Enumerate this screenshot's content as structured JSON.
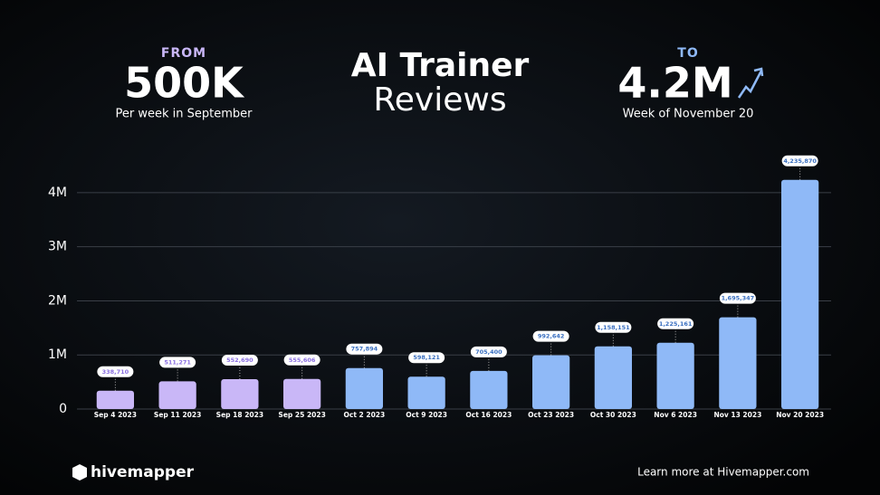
{
  "header": {
    "from_label": "FROM",
    "from_value": "500K",
    "from_note": "Per week in September",
    "title_line1": "AI Trainer",
    "title_line2": "Reviews",
    "to_label": "TO",
    "to_value": "4.2M",
    "to_note": "Week of November 20"
  },
  "footer": {
    "brand": "hivemapper",
    "link": "Learn more at Hivemapper.com"
  },
  "chart_data": {
    "type": "bar",
    "categories": [
      "Sep 4 2023",
      "Sep 11 2023",
      "Sep 18 2023",
      "Sep 25 2023",
      "Oct 2 2023",
      "Oct 9 2023",
      "Oct 16 2023",
      "Oct 23 2023",
      "Oct 30 2023",
      "Nov 6 2023",
      "Nov 13 2023",
      "Nov 20 2023"
    ],
    "values": [
      338710,
      511271,
      552690,
      555606,
      757894,
      598121,
      705400,
      992642,
      1158151,
      1225161,
      1695347,
      4235870
    ],
    "value_labels": [
      "338,710",
      "511,271",
      "552,690",
      "555,606",
      "757,894",
      "598,121",
      "705,400",
      "992,642",
      "1,158,151",
      "1,225,161",
      "1,695,347",
      "4,235,870"
    ],
    "colors": [
      "#c9b7f7",
      "#c9b7f7",
      "#c9b7f7",
      "#c9b7f7",
      "#8fb9f7",
      "#8fb9f7",
      "#8fb9f7",
      "#8fb9f7",
      "#8fb9f7",
      "#8fb9f7",
      "#8fb9f7",
      "#8fb9f7"
    ],
    "ylim": [
      0,
      4500000
    ],
    "yticks": [
      0,
      {
        "value": 1000000,
        "label": "1M"
      },
      {
        "value": 2000000,
        "label": "2M"
      },
      {
        "value": 3000000,
        "label": "3M"
      },
      {
        "value": 4000000,
        "label": "4M"
      }
    ],
    "grid": true
  }
}
